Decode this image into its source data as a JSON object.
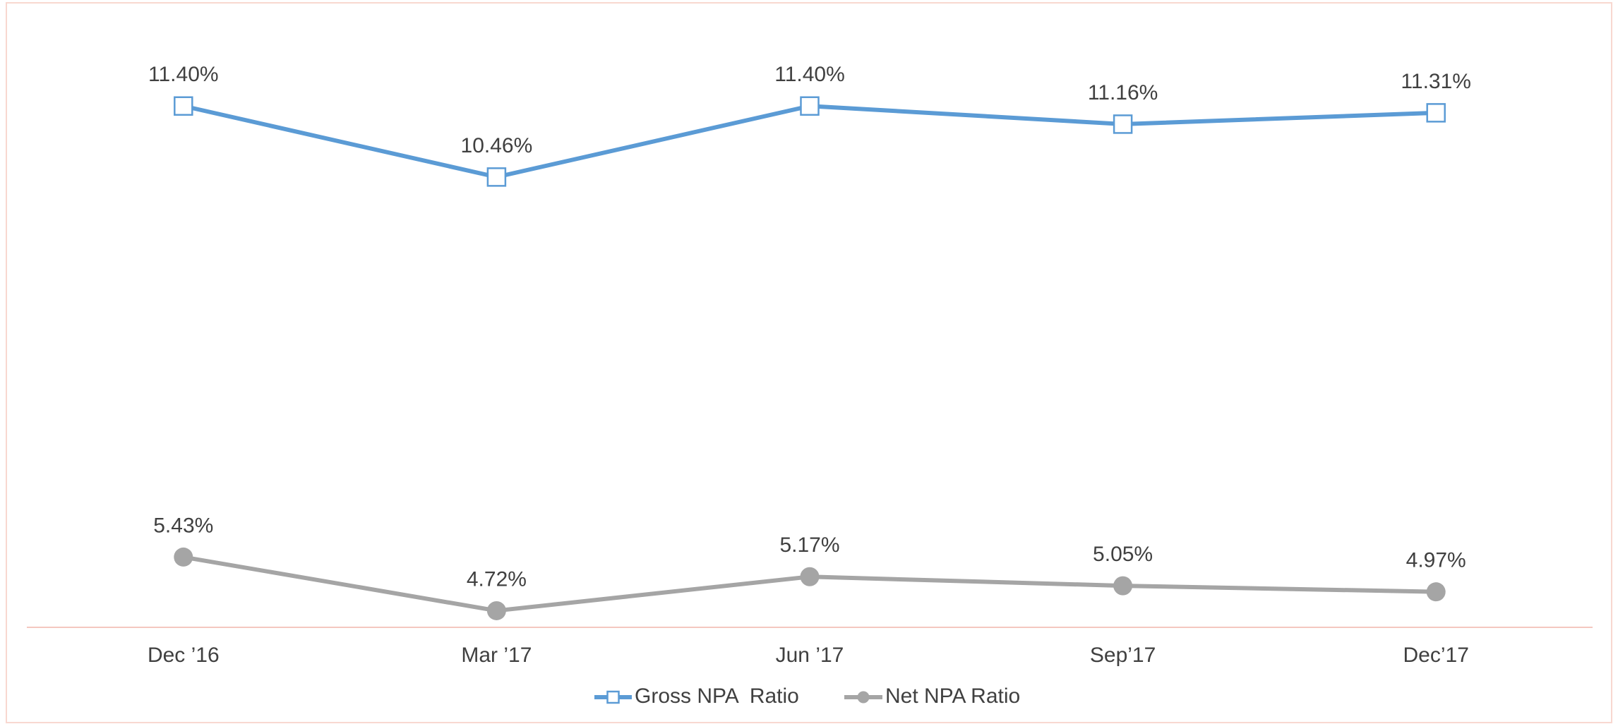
{
  "chart_data": {
    "type": "line",
    "categories": [
      "Dec ’16",
      "Mar ’17",
      "Jun ’17",
      "Sep’17",
      "Dec’17"
    ],
    "series": [
      {
        "name": "Gross NPA  Ratio",
        "color": "#5b9bd5",
        "marker": "square",
        "values": [
          11.4,
          10.46,
          11.4,
          11.16,
          11.31
        ],
        "value_labels": [
          "11.40%",
          "10.46%",
          "11.40%",
          "11.16%",
          "11.31%"
        ]
      },
      {
        "name": "Net NPA Ratio",
        "color": "#a5a5a5",
        "marker": "circle",
        "values": [
          5.43,
          4.72,
          5.17,
          5.05,
          4.97
        ],
        "value_labels": [
          "5.43%",
          "4.72%",
          "5.17%",
          "5.05%",
          "4.97%"
        ]
      }
    ],
    "ylim": [
      4.5,
      12
    ],
    "legend": "bottom"
  }
}
